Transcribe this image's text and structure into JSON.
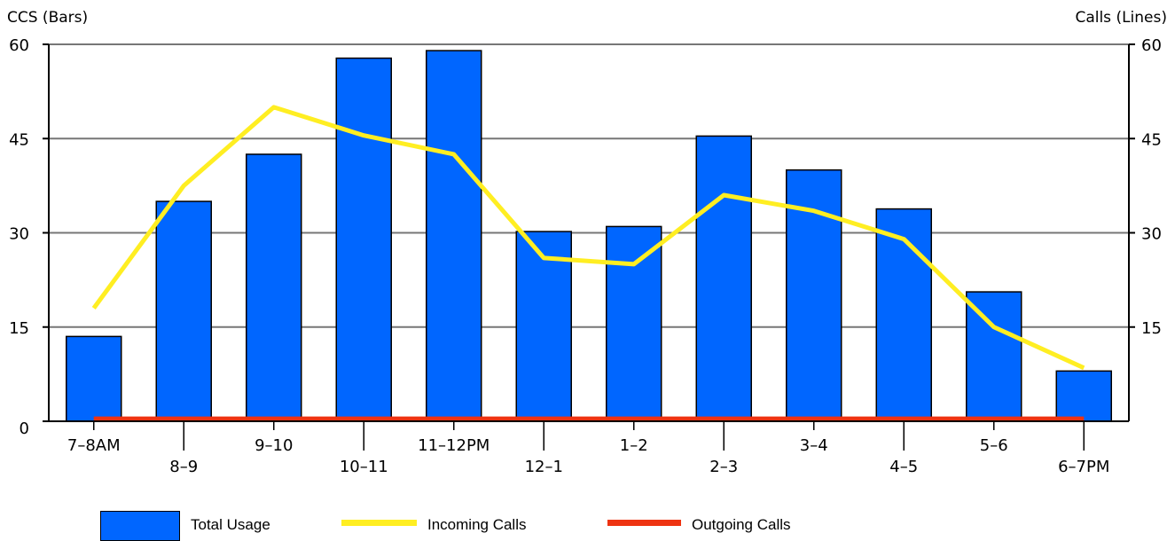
{
  "chart_data": {
    "type": "bar",
    "title": "",
    "ylabel_left": "CCS (Bars)",
    "ylabel_right": "Calls (Lines)",
    "ylim_left": [
      0,
      60
    ],
    "ylim_right": [
      0,
      60
    ],
    "yticks_left": [
      0,
      15,
      30,
      45,
      60
    ],
    "yticks_right": [
      15,
      30,
      45,
      60
    ],
    "grid": true,
    "legend_position": "bottom",
    "categories": [
      "7–8AM",
      "8–9",
      "9–10",
      "10–11",
      "11–12PM",
      "12–1",
      "1–2",
      "2–3",
      "3–4",
      "4–5",
      "5–6",
      "6–7PM"
    ],
    "series": [
      {
        "name": "Total Usage",
        "type": "bar",
        "axis": "left",
        "color": "#0066ff",
        "values": [
          13.5,
          35,
          42.5,
          57.8,
          59,
          30.2,
          31,
          45.4,
          40,
          33.8,
          20.6,
          8
        ]
      },
      {
        "name": "Incoming Calls",
        "type": "line",
        "axis": "right",
        "color": "#ffee22",
        "values": [
          18,
          37.5,
          50,
          45.5,
          42.5,
          26,
          25,
          36,
          33.5,
          29,
          15,
          8.5
        ]
      },
      {
        "name": "Outgoing Calls",
        "type": "line",
        "axis": "right",
        "color": "#ee3311",
        "values": [
          0.4,
          0.4,
          0.4,
          0.4,
          0.4,
          0.4,
          0.4,
          0.4,
          0.4,
          0.4,
          0.4,
          0.4
        ]
      }
    ]
  }
}
